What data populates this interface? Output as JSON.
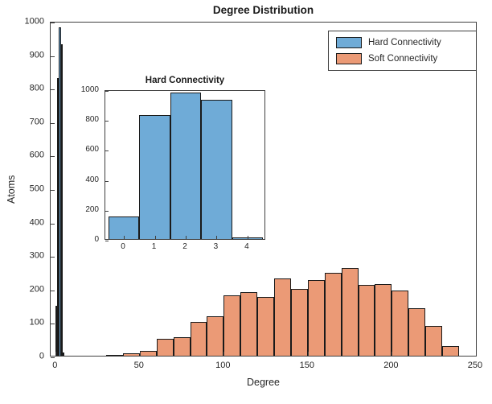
{
  "colors": {
    "background": "#FFFFFF",
    "axis": "#3F3F3F",
    "text": "#262626",
    "hard_fill": "#6FABD7",
    "soft_fill": "#EB9A76",
    "bar_edge": "#1A1A1A"
  },
  "chart_data": [
    {
      "id": "main",
      "type": "bar",
      "title": "Degree Distribution",
      "xlabel": "Degree",
      "ylabel": "Atoms",
      "xlim": [
        -3,
        251
      ],
      "ylim": [
        0,
        1000
      ],
      "xticks": [
        0,
        50,
        100,
        150,
        200,
        250
      ],
      "yticks": [
        0,
        100,
        200,
        300,
        400,
        500,
        600,
        700,
        800,
        900,
        1000
      ],
      "grid": false,
      "legend_position": "top-right",
      "series": [
        {
          "name": "Hard Connectivity",
          "fill": "#6FABD7",
          "edge": "#1A1A1A",
          "bin_start": 0,
          "bin_width": 1,
          "values": [
            150,
            830,
            980,
            930,
            10
          ]
        },
        {
          "name": "Soft Connectivity",
          "fill": "#EB9A76",
          "edge": "#1A1A1A",
          "bin_start": 30,
          "bin_width": 10,
          "values": [
            3,
            8,
            15,
            50,
            55,
            100,
            118,
            180,
            190,
            175,
            232,
            200,
            225,
            248,
            262,
            212,
            215,
            195,
            142,
            90,
            30
          ]
        }
      ]
    },
    {
      "id": "inset",
      "type": "bar",
      "title": "Hard Connectivity",
      "xlabel": "",
      "ylabel": "",
      "xlim": [
        -0.6,
        4.6
      ],
      "ylim": [
        0,
        1000
      ],
      "xticks": [
        0,
        1,
        2,
        3,
        4
      ],
      "yticks": [
        0,
        200,
        400,
        600,
        800,
        1000
      ],
      "grid": false,
      "series": [
        {
          "name": "Hard Connectivity",
          "fill": "#6FABD7",
          "edge": "#1A1A1A",
          "bin_start": -0.5,
          "bin_width": 1,
          "values": [
            150,
            830,
            980,
            930,
            10
          ]
        }
      ]
    }
  ]
}
